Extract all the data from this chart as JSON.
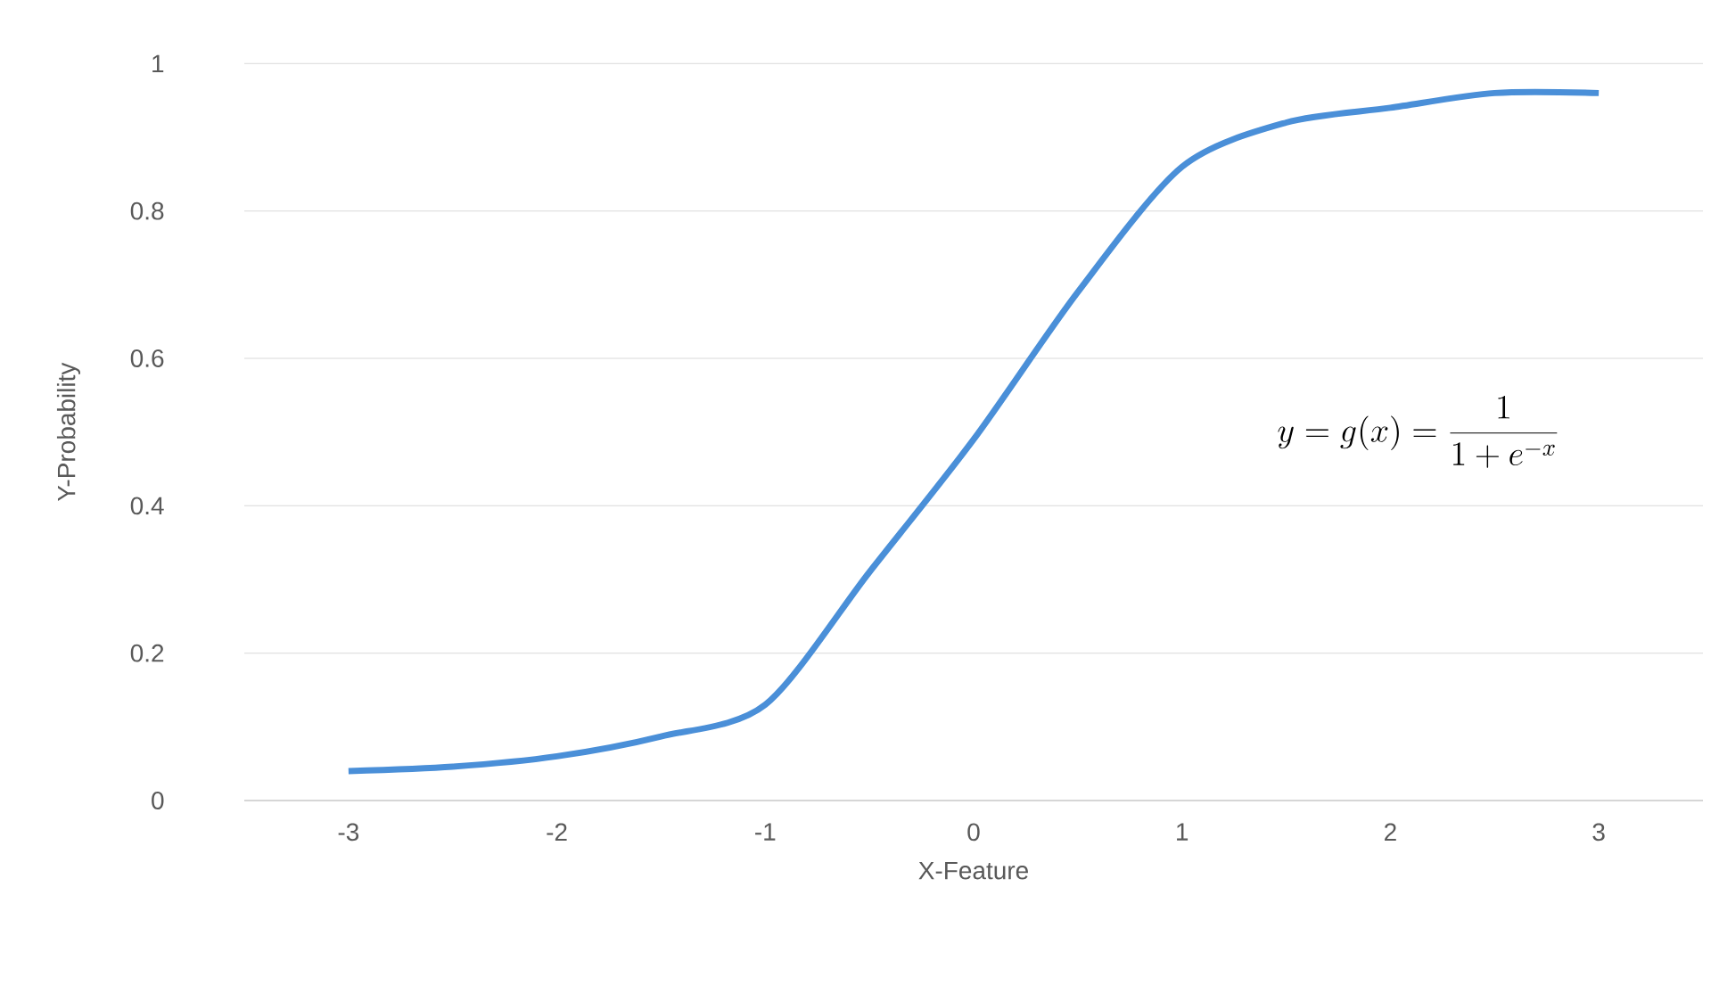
{
  "chart_data": {
    "type": "line",
    "xlabel": "X-Feature",
    "ylabel": "Y-Probability",
    "x": [
      -3,
      -2.5,
      -2,
      -1.5,
      -1,
      -0.5,
      0,
      0.5,
      1,
      1.5,
      2,
      2.5,
      3
    ],
    "series": [
      {
        "color": "#4a8fd8",
        "values": [
          0.04,
          0.046,
          0.06,
          0.087,
          0.13,
          0.31,
          0.49,
          0.69,
          0.86,
          0.92,
          0.94,
          0.96,
          0.96
        ]
      }
    ],
    "xlim": [
      -3.5,
      3.5
    ],
    "ylim": [
      0,
      1
    ],
    "xticks": [
      -3,
      -2,
      -1,
      0,
      1,
      2,
      3
    ],
    "yticks": [
      0,
      0.2,
      0.4,
      0.6,
      0.8,
      1
    ],
    "grid": "y",
    "marker": "none",
    "line_style": "solid",
    "annotations": [
      "y = g(x) = \\frac{1}{1 + e^{-x}}"
    ]
  }
}
